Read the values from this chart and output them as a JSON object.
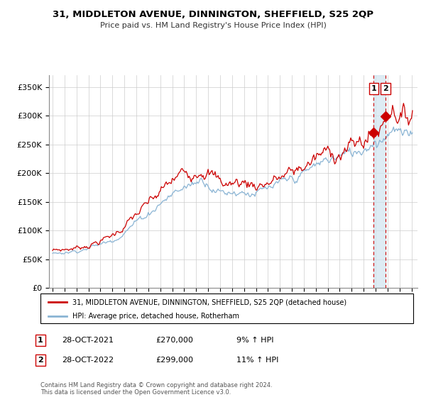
{
  "title": "31, MIDDLETON AVENUE, DINNINGTON, SHEFFIELD, S25 2QP",
  "subtitle": "Price paid vs. HM Land Registry's House Price Index (HPI)",
  "ylabel_ticks": [
    "£0",
    "£50K",
    "£100K",
    "£150K",
    "£200K",
    "£250K",
    "£300K",
    "£350K"
  ],
  "ytick_values": [
    0,
    50000,
    100000,
    150000,
    200000,
    250000,
    300000,
    350000
  ],
  "ylim": [
    0,
    370000
  ],
  "red_color": "#cc0000",
  "blue_color": "#8ab4d4",
  "shade_color": "#d0e4f0",
  "legend_label_red": "31, MIDDLETON AVENUE, DINNINGTON, SHEFFIELD, S25 2QP (detached house)",
  "legend_label_blue": "HPI: Average price, detached house, Rotherham",
  "transaction1_date": "28-OCT-2021",
  "transaction1_price": "£270,000",
  "transaction1_hpi": "9% ↑ HPI",
  "transaction2_date": "28-OCT-2022",
  "transaction2_price": "£299,000",
  "transaction2_hpi": "11% ↑ HPI",
  "footer": "Contains HM Land Registry data © Crown copyright and database right 2024.\nThis data is licensed under the Open Government Licence v3.0.",
  "vline1_x": 2021.83,
  "vline2_x": 2022.83,
  "marker1_x": 2021.83,
  "marker1_y": 270000,
  "marker2_x": 2022.83,
  "marker2_y": 299000,
  "xlim_left": 1994.7,
  "xlim_right": 2025.5,
  "xtick_years": [
    1995,
    1996,
    1997,
    1998,
    1999,
    2000,
    2001,
    2002,
    2003,
    2004,
    2005,
    2006,
    2007,
    2008,
    2009,
    2010,
    2011,
    2012,
    2013,
    2014,
    2015,
    2016,
    2017,
    2018,
    2019,
    2020,
    2021,
    2022,
    2023,
    2024,
    2025
  ]
}
